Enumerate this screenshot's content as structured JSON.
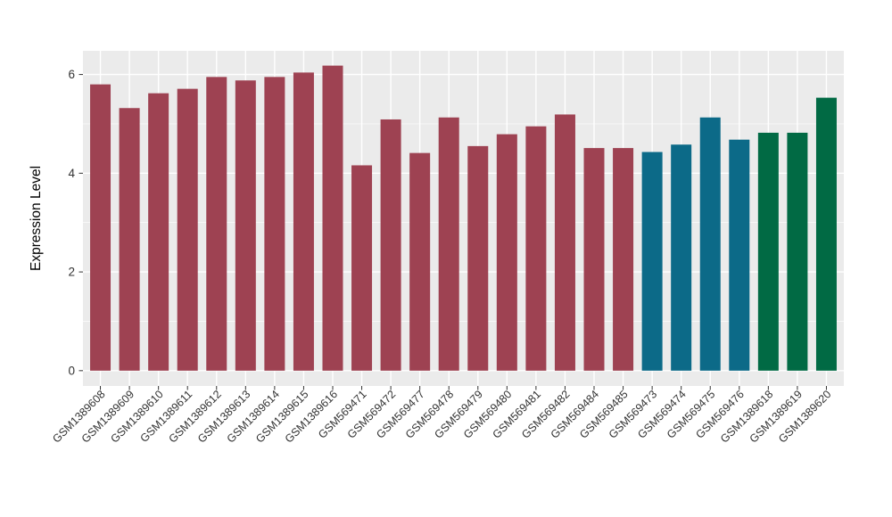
{
  "figure": {
    "background": "#ffffff",
    "panel_background": "#ebebeb",
    "grid_color": "#ffffff",
    "axis_text_color": "#333333",
    "tick_color": "#333333"
  },
  "chart_data": {
    "type": "bar",
    "title": "",
    "xlabel": "",
    "ylabel": "Expression Level",
    "categories": [
      "GSM1389608",
      "GSM1389609",
      "GSM1389610",
      "GSM1389611",
      "GSM1389612",
      "GSM1389613",
      "GSM1389614",
      "GSM1389615",
      "GSM1389616",
      "GSM569471",
      "GSM569472",
      "GSM569477",
      "GSM569478",
      "GSM569479",
      "GSM569480",
      "GSM569481",
      "GSM569482",
      "GSM569484",
      "GSM569485",
      "GSM569473",
      "GSM569474",
      "GSM569475",
      "GSM569476",
      "GSM1389618",
      "GSM1389619",
      "GSM1389620"
    ],
    "values": [
      5.8,
      5.32,
      5.62,
      5.71,
      5.95,
      5.88,
      5.95,
      6.04,
      6.18,
      4.16,
      5.09,
      4.41,
      5.13,
      4.55,
      4.79,
      4.95,
      5.19,
      4.51,
      4.51,
      4.43,
      4.58,
      5.13,
      4.68,
      4.82,
      4.82,
      5.53
    ],
    "groups": [
      "group1",
      "group1",
      "group1",
      "group1",
      "group1",
      "group1",
      "group1",
      "group1",
      "group1",
      "group1",
      "group1",
      "group1",
      "group1",
      "group1",
      "group1",
      "group1",
      "group1",
      "group1",
      "group1",
      "group2",
      "group2",
      "group2",
      "group2",
      "group3",
      "group3",
      "group3"
    ],
    "group_colors": {
      "group1": "#9e4252",
      "group2": "#0c6a88",
      "group3": "#016a44"
    },
    "yticks": [
      0,
      2,
      4,
      6
    ],
    "yticks_minor": [
      1,
      3,
      5
    ],
    "ylim": [
      -0.31,
      6.48
    ],
    "x_label_rotation_deg": 45,
    "legend_position": "none",
    "grid": "on"
  }
}
